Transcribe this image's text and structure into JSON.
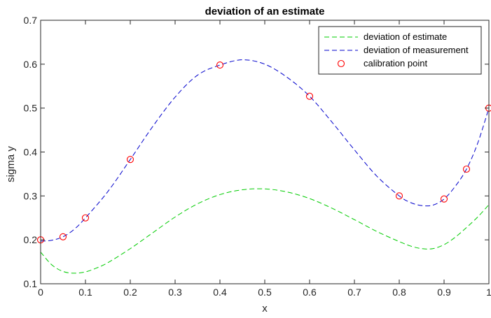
{
  "chart_data": {
    "type": "line",
    "title": "deviation of an estimate",
    "xlabel": "x",
    "ylabel": "sigma y",
    "xlim": [
      0,
      1
    ],
    "ylim": [
      0.1,
      0.7
    ],
    "x_ticks": [
      "0",
      "0.1",
      "0.2",
      "0.3",
      "0.4",
      "0.5",
      "0.6",
      "0.7",
      "0.8",
      "0.9",
      "1"
    ],
    "y_ticks": [
      "0.1",
      "0.2",
      "0.3",
      "0.4",
      "0.5",
      "0.6",
      "0.7"
    ],
    "grid": false,
    "legend_position": "top-right",
    "series": [
      {
        "name": "deviation of estimate",
        "style": "dashed",
        "color": "#00cc00",
        "x": [
          0,
          0.025,
          0.05,
          0.075,
          0.1,
          0.125,
          0.15,
          0.2,
          0.25,
          0.3,
          0.35,
          0.4,
          0.45,
          0.5,
          0.55,
          0.6,
          0.65,
          0.7,
          0.75,
          0.8,
          0.825,
          0.85,
          0.875,
          0.9,
          0.925,
          0.95,
          0.975,
          1
        ],
        "y": [
          0.172,
          0.143,
          0.128,
          0.124,
          0.127,
          0.136,
          0.148,
          0.18,
          0.216,
          0.252,
          0.282,
          0.303,
          0.314,
          0.316,
          0.309,
          0.294,
          0.272,
          0.246,
          0.219,
          0.196,
          0.186,
          0.18,
          0.18,
          0.189,
          0.206,
          0.228,
          0.252,
          0.28
        ]
      },
      {
        "name": "deviation of measurement",
        "style": "dashed",
        "color": "#0000cc",
        "x": [
          0,
          0.025,
          0.05,
          0.075,
          0.1,
          0.15,
          0.2,
          0.25,
          0.3,
          0.35,
          0.4,
          0.45,
          0.5,
          0.55,
          0.6,
          0.65,
          0.7,
          0.75,
          0.8,
          0.825,
          0.85,
          0.875,
          0.9,
          0.925,
          0.95,
          0.975,
          1
        ],
        "y": [
          0.197,
          0.199,
          0.207,
          0.224,
          0.25,
          0.31,
          0.383,
          0.458,
          0.525,
          0.575,
          0.598,
          0.61,
          0.6,
          0.57,
          0.527,
          0.468,
          0.405,
          0.345,
          0.3,
          0.285,
          0.278,
          0.279,
          0.293,
          0.322,
          0.361,
          0.42,
          0.5
        ]
      },
      {
        "name": "calibration point",
        "style": "markers",
        "marker": "circle",
        "color": "#ff0000",
        "x": [
          0,
          0.05,
          0.1,
          0.2,
          0.4,
          0.6,
          0.8,
          0.9,
          0.95,
          1
        ],
        "y": [
          0.2,
          0.207,
          0.25,
          0.383,
          0.598,
          0.527,
          0.3,
          0.293,
          0.361,
          0.5
        ]
      }
    ]
  }
}
